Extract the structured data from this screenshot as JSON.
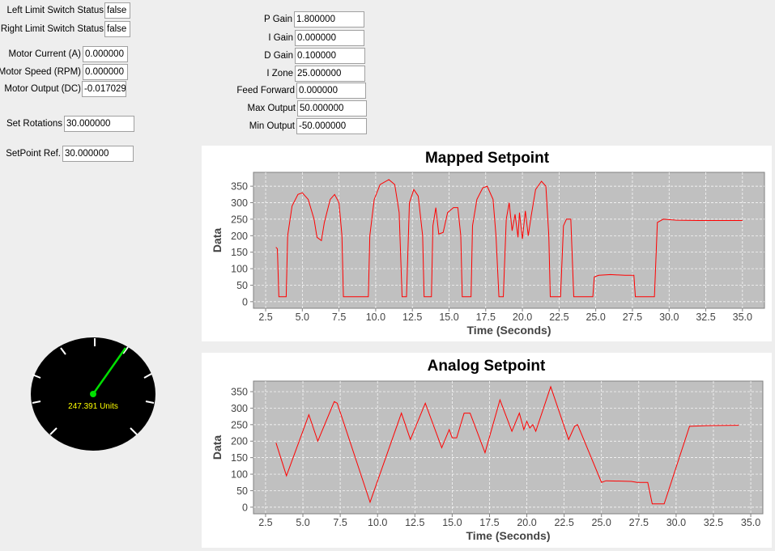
{
  "fields": [
    {
      "label": "Left Limit Switch Status",
      "value": "false"
    },
    {
      "label": "Right Limit Switch Status",
      "value": "false"
    },
    {
      "label": "Motor Current (A)",
      "value": "0.000000"
    },
    {
      "label": "Motor Speed (RPM)",
      "value": "0.000000"
    },
    {
      "label": "Motor Output (DC)",
      "value": "-0.017029"
    },
    {
      "label": "Set Rotations",
      "value": "30.000000"
    },
    {
      "label": "SetPoint Ref.",
      "value": "30.000000"
    },
    {
      "label": "P Gain",
      "value": "1.800000"
    },
    {
      "label": "I Gain",
      "value": "0.000000"
    },
    {
      "label": "D Gain",
      "value": "0.100000"
    },
    {
      "label": "I Zone",
      "value": "25.000000"
    },
    {
      "label": "Feed Forward",
      "value": "0.000000"
    },
    {
      "label": "Max Output",
      "value": "50.000000"
    },
    {
      "label": "Min Output",
      "value": "-50.000000"
    }
  ],
  "gauge": {
    "value": 247.391,
    "value_label": "247.391 Units"
  },
  "chart_data": [
    {
      "type": "line",
      "title": "Mapped Setpoint",
      "x_label": "Time (Seconds)",
      "y_label": "Data",
      "color": "#ff0000",
      "grid": true,
      "xlim": [
        1.67,
        36.5
      ],
      "ylim": [
        -20,
        392
      ],
      "xticks": [
        2.5,
        {
          "value": 5,
          "label": "5.0"
        },
        7.5,
        {
          "value": 10,
          "label": "10.0"
        },
        12.5,
        {
          "value": 15,
          "label": "15.0"
        },
        17.5,
        {
          "value": 20,
          "label": "20.0"
        },
        22.5,
        {
          "value": 25,
          "label": "25.0"
        },
        27.5,
        {
          "value": 30,
          "label": "30.0"
        },
        32.5,
        {
          "value": 35,
          "label": "35.0"
        }
      ],
      "yticks": [
        0,
        50,
        100,
        150,
        200,
        250,
        300,
        350
      ],
      "x": [
        3.2,
        3.3,
        3.4,
        3.9,
        4.0,
        4.3,
        4.7,
        5.0,
        5.4,
        5.8,
        6.0,
        6.3,
        6.5,
        6.9,
        7.2,
        7.5,
        7.7,
        7.8,
        9.5,
        9.6,
        9.9,
        10.3,
        10.9,
        11.3,
        11.6,
        11.8,
        12.1,
        12.3,
        12.6,
        12.9,
        13.2,
        13.3,
        13.8,
        13.9,
        14.1,
        14.3,
        14.6,
        14.9,
        15.3,
        15.6,
        15.8,
        15.9,
        16.5,
        16.6,
        16.9,
        17.3,
        17.6,
        18.0,
        18.2,
        18.4,
        18.7,
        18.9,
        19.1,
        19.3,
        19.5,
        19.7,
        19.8,
        20.0,
        20.2,
        20.4,
        20.6,
        20.9,
        21.3,
        21.6,
        21.8,
        21.9,
        22.6,
        22.8,
        23.0,
        23.3,
        23.5,
        24.8,
        24.9,
        25.2,
        26.0,
        27.0,
        27.6,
        27.7,
        29.0,
        29.2,
        29.6,
        30.5,
        32.0,
        35.0
      ],
      "values": [
        165,
        160,
        15,
        15,
        200,
        290,
        325,
        330,
        310,
        250,
        195,
        185,
        240,
        310,
        325,
        300,
        200,
        15,
        15,
        200,
        310,
        355,
        370,
        355,
        270,
        15,
        15,
        300,
        340,
        320,
        200,
        15,
        15,
        230,
        285,
        205,
        210,
        270,
        285,
        285,
        200,
        15,
        15,
        230,
        310,
        345,
        350,
        310,
        200,
        15,
        15,
        250,
        300,
        215,
        265,
        195,
        270,
        190,
        275,
        200,
        260,
        340,
        365,
        350,
        200,
        15,
        15,
        230,
        250,
        250,
        15,
        15,
        75,
        80,
        82,
        80,
        80,
        15,
        15,
        240,
        250,
        247,
        246,
        246
      ]
    },
    {
      "type": "line",
      "title": "Analog Setpoint",
      "x_label": "Time (Seconds)",
      "y_label": "Data",
      "color": "#ff0000",
      "grid": true,
      "xlim": [
        1.69,
        35.81
      ],
      "ylim": [
        -20,
        382
      ],
      "xticks": [
        2.5,
        {
          "value": 5,
          "label": "5.0"
        },
        7.5,
        {
          "value": 10,
          "label": "10.0"
        },
        12.5,
        {
          "value": 15,
          "label": "15.0"
        },
        17.5,
        {
          "value": 20,
          "label": "20.0"
        },
        22.5,
        {
          "value": 25,
          "label": "25.0"
        },
        27.5,
        {
          "value": 30,
          "label": "30.0"
        },
        32.5,
        {
          "value": 35,
          "label": "35.0"
        }
      ],
      "yticks": [
        0,
        50,
        100,
        150,
        200,
        250,
        300,
        350
      ],
      "x": [
        3.2,
        3.9,
        5.4,
        6.0,
        7.1,
        7.3,
        9.5,
        11.6,
        12.2,
        13.2,
        14.3,
        14.8,
        15.0,
        15.3,
        15.8,
        16.2,
        17.2,
        18.2,
        19.0,
        19.5,
        19.8,
        20.0,
        20.2,
        20.4,
        20.6,
        21.6,
        22.8,
        23.2,
        23.4,
        25.0,
        25.3,
        27.0,
        27.4,
        28.1,
        28.4,
        29.2,
        30.9,
        32.0,
        34.2
      ],
      "values": [
        195,
        95,
        280,
        200,
        320,
        315,
        15,
        285,
        205,
        315,
        180,
        235,
        210,
        210,
        285,
        285,
        165,
        325,
        230,
        285,
        235,
        260,
        240,
        250,
        230,
        365,
        205,
        245,
        250,
        75,
        80,
        78,
        75,
        75,
        10,
        10,
        245,
        247,
        248
      ]
    }
  ]
}
